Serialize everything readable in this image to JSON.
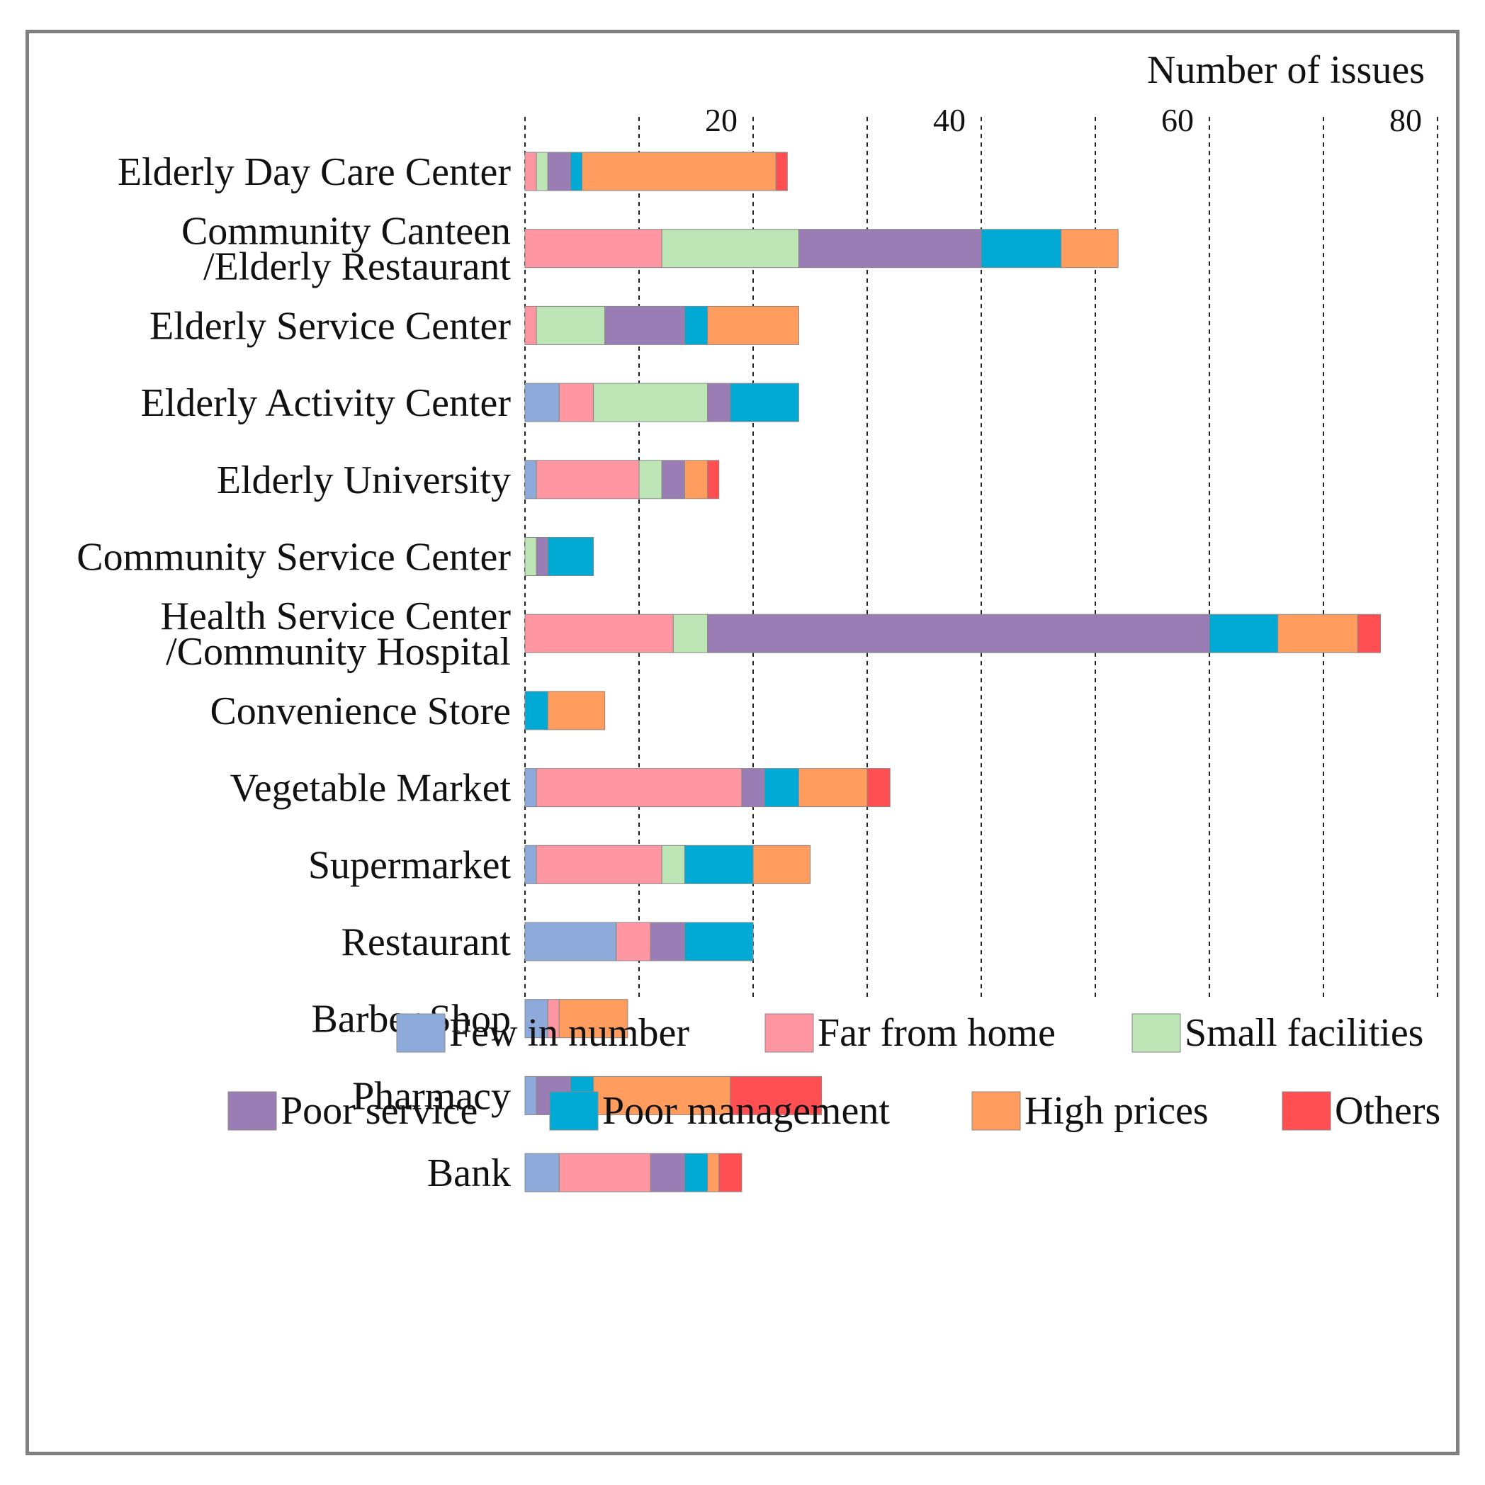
{
  "chart_data": {
    "type": "bar",
    "orientation": "horizontal",
    "stacked": true,
    "title": "",
    "xlabel": "Number of issues",
    "ylabel": "",
    "xlim": [
      0,
      80
    ],
    "xticks": [
      20,
      40,
      60,
      80
    ],
    "grid": "vertical-dashed",
    "legend_position": "bottom",
    "categories": [
      [
        "Elderly Day Care Center"
      ],
      [
        "Community Canteen",
        "/Elderly Restaurant"
      ],
      [
        "Elderly Service Center"
      ],
      [
        "Elderly Activity Center"
      ],
      [
        "Elderly University"
      ],
      [
        "Community Service Center"
      ],
      [
        "Health Service Center",
        "/Community Hospital"
      ],
      [
        "Convenience Store"
      ],
      [
        "Vegetable Market"
      ],
      [
        "Supermarket"
      ],
      [
        "Restaurant"
      ],
      [
        "Barber Shop"
      ],
      [
        "Pharmacy"
      ],
      [
        "Bank"
      ]
    ],
    "series": [
      {
        "name": "Few in number",
        "color": "#8eaadb",
        "values": [
          0,
          0,
          0,
          3,
          1,
          0,
          0,
          0,
          1,
          1,
          8,
          2,
          1,
          3
        ]
      },
      {
        "name": "Far from home",
        "color": "#ff96a1",
        "values": [
          1,
          12,
          1,
          3,
          9,
          0,
          13,
          0,
          18,
          11,
          3,
          1,
          0,
          8
        ]
      },
      {
        "name": "Small facilities",
        "color": "#bde5b6",
        "values": [
          1,
          12,
          6,
          10,
          2,
          1,
          3,
          0,
          0,
          2,
          0,
          0,
          0,
          0
        ]
      },
      {
        "name": "Poor service",
        "color": "#9b7db6",
        "values": [
          2,
          16,
          7,
          2,
          2,
          1,
          44,
          0,
          2,
          0,
          3,
          0,
          3,
          3
        ]
      },
      {
        "name": "Poor management",
        "color": "#00aad4",
        "values": [
          1,
          7,
          2,
          6,
          0,
          4,
          6,
          2,
          3,
          6,
          6,
          0,
          2,
          2
        ]
      },
      {
        "name": "High prices",
        "color": "#ff9c5e",
        "values": [
          17,
          5,
          8,
          0,
          2,
          0,
          7,
          5,
          6,
          5,
          0,
          6,
          12,
          1
        ]
      },
      {
        "name": "Others",
        "color": "#ff4f52",
        "values": [
          1,
          0,
          0,
          0,
          1,
          0,
          2,
          0,
          2,
          0,
          0,
          0,
          8,
          2
        ]
      }
    ]
  }
}
